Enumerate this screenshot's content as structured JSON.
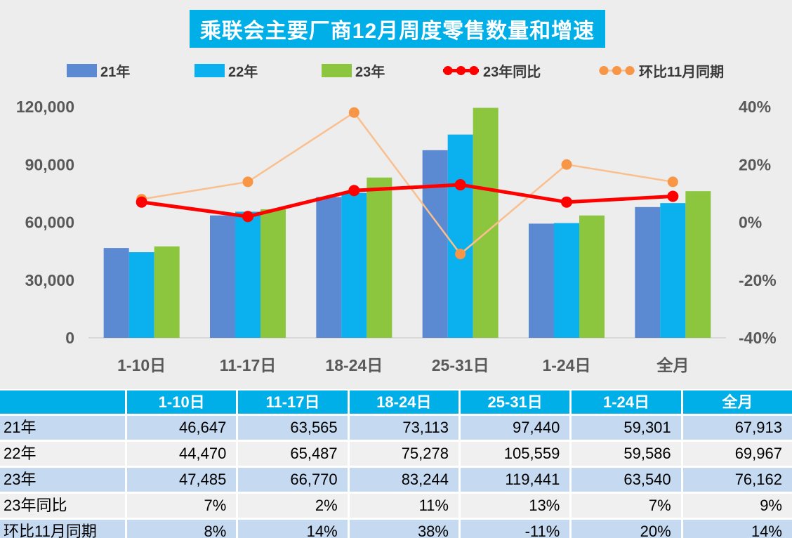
{
  "title": "乘联会主要厂商12月周度零售数量和增速",
  "legend": {
    "items": [
      {
        "label": "21年",
        "type": "bar",
        "color": "#5B8AD2"
      },
      {
        "label": "22年",
        "type": "bar",
        "color": "#0AB1EE"
      },
      {
        "label": "23年",
        "type": "bar",
        "color": "#8CC63E"
      },
      {
        "label": "23年同比",
        "type": "line",
        "color": "#FE0000",
        "marker_color": "#FE0000"
      },
      {
        "label": "环比11月同期",
        "type": "line",
        "color": "#FABF8F",
        "marker_color": "#F79646"
      }
    ]
  },
  "chart_data": {
    "type": "combo-bar-line",
    "title": "乘联会主要厂商12月周度零售数量和增速",
    "categories": [
      "1-10日",
      "11-17日",
      "18-24日",
      "25-31日",
      "1-24日",
      "全月"
    ],
    "bar_series": [
      {
        "name": "21年",
        "color": "#5B8AD2",
        "values": [
          46647,
          63565,
          73113,
          97440,
          59301,
          67913
        ]
      },
      {
        "name": "22年",
        "color": "#0AB1EE",
        "values": [
          44470,
          65487,
          75278,
          105559,
          59586,
          69967
        ]
      },
      {
        "name": "23年",
        "color": "#8CC63E",
        "values": [
          47485,
          66770,
          83244,
          119441,
          63540,
          76162
        ]
      }
    ],
    "line_series": [
      {
        "name": "23年同比",
        "color": "#FE0000",
        "marker_color": "#FE0000",
        "values_pct": [
          7,
          2,
          11,
          13,
          7,
          9
        ]
      },
      {
        "name": "环比11月同期",
        "color": "#FABF8F",
        "marker_color": "#F79646",
        "values_pct": [
          8,
          14,
          38,
          -11,
          20,
          14
        ]
      }
    ],
    "left_axis": {
      "ticks": [
        "0",
        "30,000",
        "60,000",
        "90,000",
        "120,000"
      ],
      "min": 0,
      "max": 120000
    },
    "right_axis": {
      "ticks": [
        "-40%",
        "-20%",
        "0%",
        "20%",
        "40%"
      ],
      "min": -40,
      "max": 40,
      "format": "percent"
    },
    "grid": false,
    "legend_position": "top"
  },
  "table": {
    "header": [
      "",
      "1-10日",
      "11-17日",
      "18-24日",
      "25-31日",
      "1-24日",
      "全月"
    ],
    "rows": [
      {
        "label": "21年",
        "values": [
          "46,647",
          "63,565",
          "73,113",
          "97,440",
          "59,301",
          "67,913"
        ]
      },
      {
        "label": "22年",
        "values": [
          "44,470",
          "65,487",
          "75,278",
          "105,559",
          "59,586",
          "69,967"
        ]
      },
      {
        "label": "23年",
        "values": [
          "47,485",
          "66,770",
          "83,244",
          "119,441",
          "63,540",
          "76,162"
        ]
      },
      {
        "label": "23年同比",
        "values": [
          "7%",
          "2%",
          "11%",
          "13%",
          "7%",
          "9%"
        ]
      },
      {
        "label": "环比11月同期",
        "values": [
          "8%",
          "14%",
          "38%",
          "-11%",
          "20%",
          "14%"
        ]
      }
    ]
  },
  "colors": {
    "accent_cyan": "#00AEE8",
    "row_highlight": "#C5D9F1",
    "row_plain": "#F0F0F0",
    "axis_text": "#595959",
    "baseline": "#D9D9D9",
    "page_background": "#EDEDED"
  }
}
